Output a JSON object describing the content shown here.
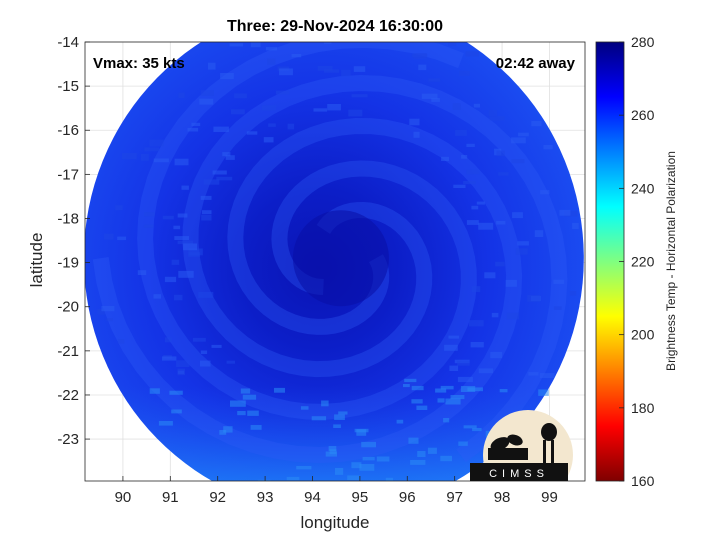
{
  "chart_data": {
    "type": "heatmap",
    "title": "Three: 29-Nov-2024 16:30:00",
    "xlabel": "longitude",
    "ylabel": "latitude",
    "xlim": [
      89.2,
      99.75
    ],
    "ylim": [
      -23.95,
      -14
    ],
    "xticks": [
      90,
      91,
      92,
      93,
      94,
      95,
      96,
      97,
      98,
      99
    ],
    "yticks": [
      -14,
      -15,
      -16,
      -17,
      -18,
      -19,
      -20,
      -21,
      -22,
      -23
    ],
    "grid": true,
    "annotations": {
      "vmax": "Vmax: 35 kts",
      "time_offset": "02:42 away"
    },
    "colorbar": {
      "label": "Brightness Temp - Horizontal Polarization",
      "ticks": [
        160,
        180,
        200,
        220,
        240,
        260,
        280
      ],
      "range": [
        160,
        280
      ],
      "colormap": [
        "#7f0000",
        "#ff0000",
        "#ff8000",
        "#ffff00",
        "#80ff80",
        "#00ffff",
        "#0080ff",
        "#0000ff",
        "#00007f"
      ]
    },
    "swath": {
      "center_lon": 94.45,
      "center_lat": -18.9,
      "cyclone_center_lon": 94.6,
      "cyclone_center_lat": -18.9,
      "min_temp": 256,
      "max_temp": 275
    }
  },
  "logo": {
    "text": "CIMSS"
  }
}
